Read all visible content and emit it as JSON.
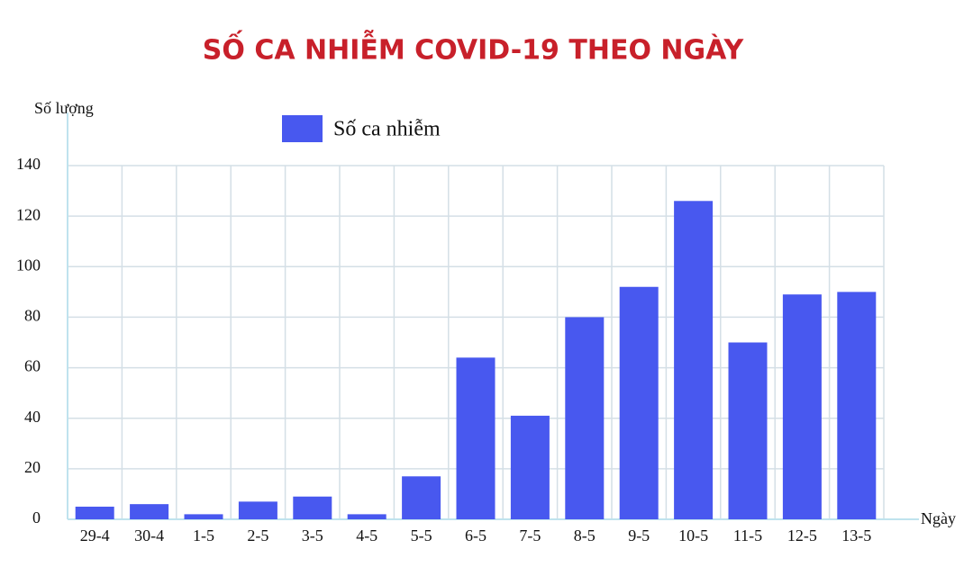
{
  "chart_data": {
    "type": "bar",
    "title": "SỐ CA NHIỄM COVID-19 THEO NGÀY",
    "y_label": "Số lượng",
    "x_label": "Ngày",
    "categories": [
      "29-4",
      "30-4",
      "1-5",
      "2-5",
      "3-5",
      "4-5",
      "5-5",
      "6-5",
      "7-5",
      "8-5",
      "9-5",
      "10-5",
      "11-5",
      "12-5",
      "13-5"
    ],
    "series": [
      {
        "name": "Số ca nhiễm",
        "color": "#4858ef",
        "values": [
          5,
          6,
          2,
          7,
          9,
          2,
          17,
          64,
          41,
          80,
          92,
          126,
          70,
          89,
          90
        ]
      }
    ],
    "ylim": [
      0,
      140
    ],
    "yticks": [
      0,
      20,
      40,
      60,
      80,
      100,
      120,
      140
    ],
    "grid": true
  }
}
